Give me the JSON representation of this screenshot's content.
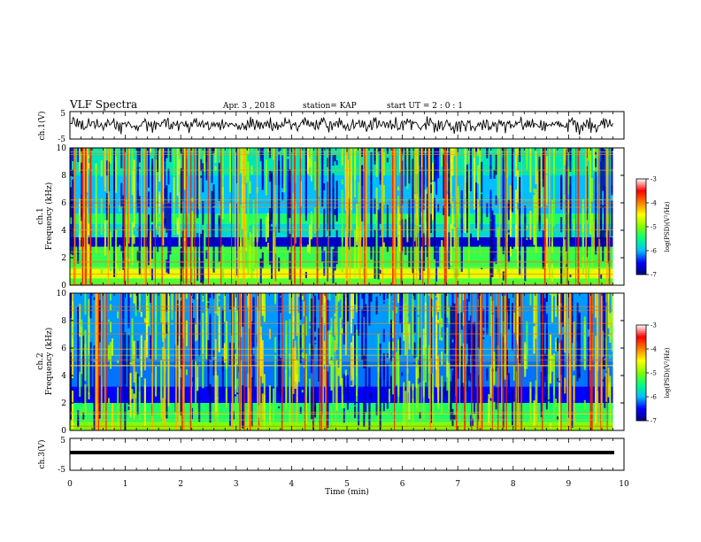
{
  "header": {
    "title": "VLF Spectra",
    "date": "Apr. 3 , 2018",
    "station": "station= KAP",
    "start_ut": "start UT = 2 : 0 : 1"
  },
  "chart_data": [
    {
      "type": "line",
      "panel": "waveform-ch1",
      "ylabel": "ch.1(V)",
      "yticks": [
        "5",
        "-5"
      ],
      "ylim": [
        -5,
        5
      ],
      "xlim": [
        0,
        10
      ],
      "x_range": [
        0,
        9.8
      ],
      "description_of_values": "noisy broadband waveform, roughly -2.5 to +2.5 V",
      "sample_values": [
        0.6,
        1.8,
        -0.4,
        1.2,
        2.1,
        -1.5,
        0.3,
        1.6,
        -2.2,
        0.9,
        1.4,
        -0.8,
        2.4,
        0.1,
        -1.9,
        1.1,
        0.5,
        -0.6,
        1.9,
        -2.6,
        0.8,
        1.3,
        -0.2,
        2.2,
        -1.1,
        0.4,
        1.7,
        -2.0,
        0.2,
        1.0
      ]
    },
    {
      "type": "heatmap",
      "panel": "spectrogram-ch1",
      "ylabel": "ch.1\nFrequency (kHz)",
      "ylabel_line1": "ch.1",
      "ylabel_line2": "Frequency (kHz)",
      "yticks": [
        "0",
        "2",
        "4",
        "6",
        "8",
        "10"
      ],
      "ylim": [
        0,
        10
      ],
      "xlim": [
        0,
        10
      ],
      "x_range": [
        0,
        9.8
      ],
      "colorbar": {
        "label": "log(PSD)(V²/Hz)",
        "ticks": [
          "-3",
          "-4",
          "-5",
          "-6",
          "-7"
        ],
        "range": [
          -7,
          -3
        ]
      },
      "bands_khz": [
        {
          "from": 0.0,
          "to": 0.5,
          "level": -5.2
        },
        {
          "from": 0.5,
          "to": 1.2,
          "level": -4.6
        },
        {
          "from": 1.2,
          "to": 2.8,
          "level": -5.3
        },
        {
          "from": 2.8,
          "to": 3.5,
          "level": -6.7
        },
        {
          "from": 3.5,
          "to": 4.5,
          "level": -5.8
        },
        {
          "from": 4.5,
          "to": 5.2,
          "level": -5.4
        },
        {
          "from": 5.2,
          "to": 8.0,
          "level": -6.0
        },
        {
          "from": 8.0,
          "to": 10.0,
          "level": -5.7
        }
      ]
    },
    {
      "type": "heatmap",
      "panel": "spectrogram-ch2",
      "ylabel_line1": "ch.2",
      "ylabel_line2": "Frequency (kHz)",
      "yticks": [
        "0",
        "2",
        "4",
        "6",
        "8",
        "10"
      ],
      "ylim": [
        0,
        10
      ],
      "xlim": [
        0,
        10
      ],
      "x_range": [
        0,
        9.8
      ],
      "colorbar": {
        "label": "log(PSD)(V²/Hz)",
        "ticks": [
          "-3",
          "-4",
          "-5",
          "-6",
          "-7"
        ],
        "range": [
          -7,
          -3
        ]
      },
      "bands_khz": [
        {
          "from": 0.0,
          "to": 0.6,
          "level": -5.0
        },
        {
          "from": 0.6,
          "to": 2.0,
          "level": -5.4
        },
        {
          "from": 2.0,
          "to": 3.2,
          "level": -6.5
        },
        {
          "from": 3.2,
          "to": 5.0,
          "level": -6.2
        },
        {
          "from": 5.0,
          "to": 10.0,
          "level": -6.1
        }
      ]
    },
    {
      "type": "line",
      "panel": "waveform-ch3",
      "ylabel": "ch.3(V)",
      "yticks": [
        "5",
        "-5"
      ],
      "ylim": [
        -5,
        5
      ],
      "xlim": [
        0,
        10
      ],
      "x_range": [
        0,
        9.8
      ],
      "constant_value": 0,
      "xlabel": "Time (min)",
      "xticks": [
        "0",
        "1",
        "2",
        "3",
        "4",
        "5",
        "6",
        "7",
        "8",
        "9",
        "10"
      ]
    }
  ],
  "colors": {
    "axis": "#000000",
    "colormap": [
      "#000080",
      "#0000ff",
      "#00c0ff",
      "#00ff80",
      "#80ff00",
      "#ffff00",
      "#ff8000",
      "#ff0000",
      "#ffffff"
    ]
  }
}
